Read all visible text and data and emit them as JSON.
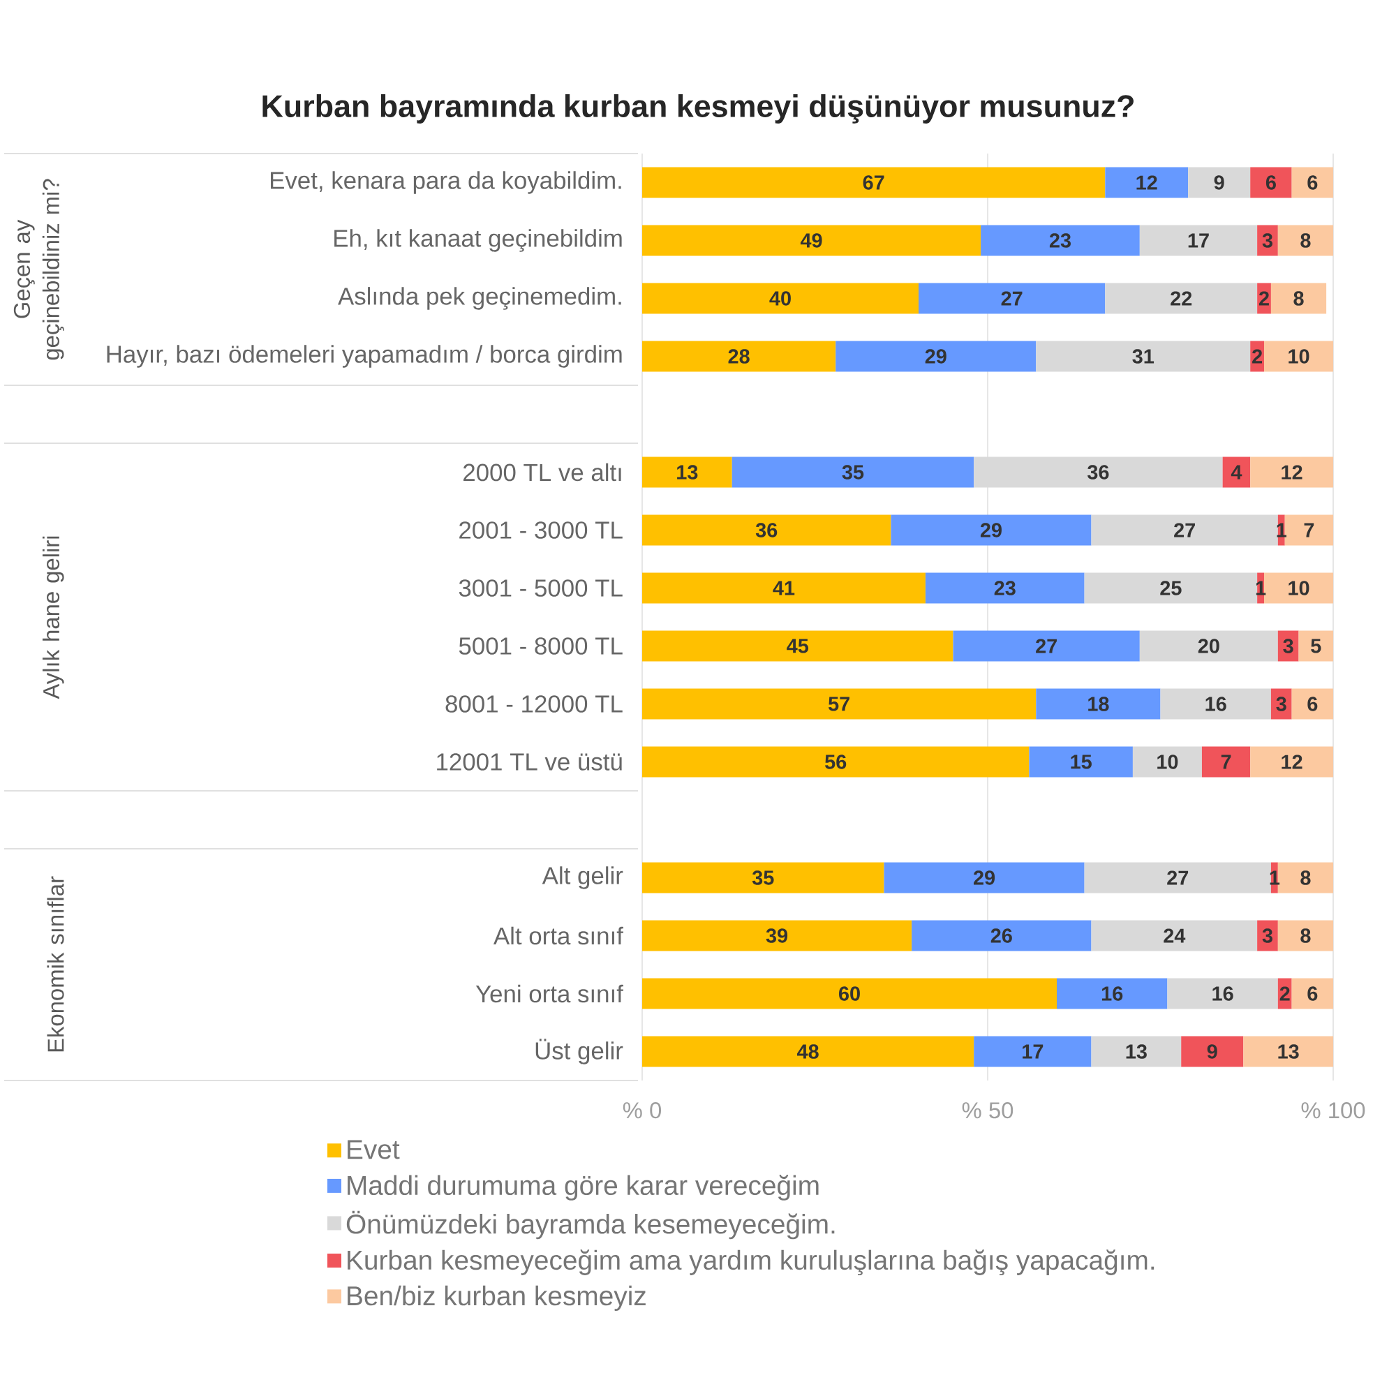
{
  "chart_data": {
    "type": "bar",
    "orientation": "horizontal",
    "stacked": true,
    "title": "Kurban bayramında kurban kesmeyi düşünüyor musunuz?",
    "categories": [
      "Evet, kenara para da koyabildim.",
      "Eh, kıt kanaat geçinebildim",
      "Aslında pek geçinemedim.",
      "Hayır, bazı ödemeleri yapamadım / borca girdim",
      null,
      "2000 TL ve altı",
      "2001 - 3000 TL",
      "3001 - 5000 TL",
      "5001 - 8000 TL",
      "8001 - 12000 TL",
      "12001 TL ve üstü",
      null,
      "Alt gelir",
      "Alt orta sınıf",
      "Yeni orta sınıf",
      "Üst gelir"
    ],
    "series": [
      {
        "name": "Evet",
        "color": "#ffc000",
        "values": [
          67,
          49,
          40,
          28,
          null,
          13,
          36,
          41,
          45,
          57,
          56,
          null,
          35,
          39,
          60,
          48
        ]
      },
      {
        "name": "Maddi durumuma göre karar vereceğim",
        "color": "#6699ff",
        "values": [
          12,
          23,
          27,
          29,
          null,
          35,
          29,
          23,
          27,
          18,
          15,
          null,
          29,
          26,
          16,
          17
        ]
      },
      {
        "name": "Önümüzdeki bayramda kesemeyeceğim.",
        "color": "#d9d9d9",
        "values": [
          9,
          17,
          22,
          31,
          null,
          36,
          27,
          25,
          20,
          16,
          10,
          null,
          27,
          24,
          16,
          13
        ]
      },
      {
        "name": "Kurban kesmeyeceğim ama yardım kuruluşlarına bağış yapacağım.",
        "color": "#f0545a",
        "values": [
          6,
          3,
          2,
          2,
          null,
          4,
          1,
          1,
          3,
          3,
          7,
          null,
          1,
          3,
          2,
          9
        ]
      },
      {
        "name": "Ben/biz kurban kesmeyiz",
        "color": "#fcc9a0",
        "values": [
          6,
          8,
          8,
          10,
          null,
          12,
          7,
          10,
          5,
          6,
          12,
          null,
          8,
          8,
          6,
          13
        ]
      }
    ],
    "xlim": [
      0,
      100
    ],
    "xticks": [
      {
        "value": 0,
        "label": "% 0"
      },
      {
        "value": 50,
        "label": "% 50"
      },
      {
        "value": 100,
        "label": "% 100"
      }
    ],
    "data_labels": true,
    "grid": "x",
    "legend": "bottom",
    "annotations": [
      "Geçen ay geçinebildiniz mi?",
      "Aylık hane geliri",
      "Ekonomik sınıflar"
    ]
  }
}
